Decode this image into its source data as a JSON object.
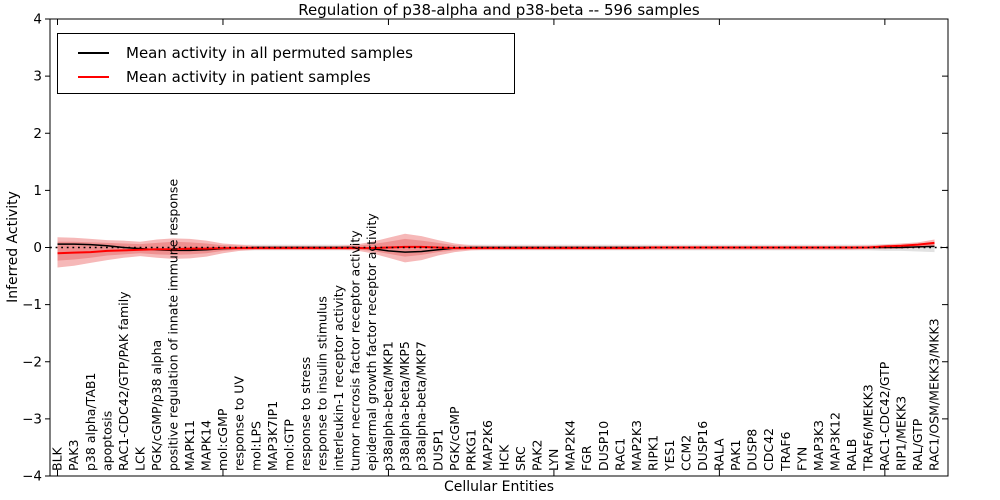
{
  "title": "Regulation of p38-alpha and p38-beta -- 596 samples",
  "legend": {
    "items": [
      {
        "label": "Mean activity in all permuted samples",
        "color": "#000000"
      },
      {
        "label": "Mean activity in patient samples",
        "color": "#ff0000"
      }
    ]
  },
  "chart_data": {
    "type": "line",
    "title": "Regulation of p38-alpha and p38-beta -- 596 samples",
    "xlabel": "Cellular Entities",
    "ylabel": "Inferred Activity",
    "ylim": [
      -4,
      4
    ],
    "yticks": [
      4,
      3,
      2,
      1,
      0,
      -1,
      -2,
      -3,
      -4
    ],
    "grid": false,
    "legend_position": "upper left",
    "zero_line": {
      "style": "dotted",
      "color": "#000000",
      "y": 0
    },
    "categories": [
      "BLK",
      "PAK3",
      "p38 alpha/TAB1",
      "apoptosis",
      "RAC1-CDC42/GTP/PAK family",
      "LCK",
      "PGK/cGMP/p38 alpha",
      "positive regulation of innate immune response",
      "MAPK11",
      "MAPK14",
      "mol:cGMP",
      "response to UV",
      "mol:LPS",
      "MAP3K7IP1",
      "mol:GTP",
      "response to stress",
      "response to insulin stimulus",
      "interleukin-1 receptor activity",
      "tumor necrosis factor receptor activity",
      "epidermal growth factor receptor activity",
      "p38alpha-beta/MKP1",
      "p38alpha-beta/MKP5",
      "p38alpha-beta/MKP7",
      "DUSP1",
      "PGK/cGMP",
      "PRKG1",
      "MAP2K6",
      "HCK",
      "SRC",
      "PAK2",
      "LYN",
      "MAP2K4",
      "FGR",
      "DUSP10",
      "RAC1",
      "MAP2K3",
      "RIPK1",
      "YES1",
      "CCM2",
      "DUSP16",
      "RALA",
      "PAK1",
      "DUSP8",
      "CDC42",
      "TRAF6",
      "FYN",
      "MAP3K3",
      "MAP3K12",
      "RALB",
      "TRAF6/MEKK3",
      "RAC1-CDC42/GTP",
      "RIP1/MEKK3",
      "RAL/GTP",
      "RAC1/OSM/MEKK3/MKK3"
    ],
    "series": [
      {
        "name": "Mean activity in all permuted samples",
        "color": "#000000",
        "values": [
          0.06,
          0.06,
          0.05,
          0.03,
          0,
          -0.02,
          -0.04,
          -0.05,
          -0.05,
          -0.04,
          -0.02,
          -0.01,
          0,
          0,
          0,
          0,
          0,
          0,
          0,
          -0.02,
          -0.06,
          -0.08,
          -0.07,
          -0.04,
          -0.01,
          0,
          0,
          0,
          0,
          0,
          0,
          0,
          0,
          0,
          0,
          0,
          0,
          0,
          0,
          0,
          0,
          0,
          0,
          0,
          0,
          0,
          0,
          0,
          0,
          0,
          0,
          0,
          0.01,
          0.02
        ]
      },
      {
        "name": "Mean activity in patient samples",
        "color": "#ff0000",
        "values": [
          -0.1,
          -0.09,
          -0.08,
          -0.06,
          -0.05,
          -0.04,
          -0.03,
          -0.03,
          -0.02,
          -0.02,
          -0.01,
          -0.01,
          -0.01,
          -0.01,
          -0.01,
          -0.01,
          -0.01,
          -0.01,
          -0.01,
          -0.01,
          0,
          0.01,
          0.01,
          0,
          -0.01,
          -0.01,
          -0.01,
          -0.01,
          -0.01,
          -0.01,
          -0.01,
          -0.01,
          -0.01,
          -0.01,
          -0.01,
          -0.01,
          0,
          0,
          0,
          0,
          0,
          0,
          0,
          0,
          0,
          0,
          0,
          0,
          0,
          0,
          0.02,
          0.03,
          0.05,
          0.08
        ]
      }
    ],
    "bands": [
      {
        "name": "permuted-samples-band",
        "color": "#e2e2e2",
        "lower": [
          -0.06,
          -0.06,
          -0.06,
          -0.06,
          -0.07,
          -0.08,
          -0.09,
          -0.1,
          -0.1,
          -0.09,
          -0.07,
          -0.06,
          -0.05,
          -0.05,
          -0.05,
          -0.05,
          -0.05,
          -0.05,
          -0.05,
          -0.07,
          -0.1,
          -0.12,
          -0.11,
          -0.08,
          -0.06,
          -0.05,
          -0.05,
          -0.05,
          -0.05,
          -0.05,
          -0.05,
          -0.05,
          -0.05,
          -0.05,
          -0.05,
          -0.05,
          -0.05,
          -0.05,
          -0.05,
          -0.05,
          -0.05,
          -0.05,
          -0.05,
          -0.05,
          -0.05,
          -0.05,
          -0.05,
          -0.05,
          -0.05,
          -0.05,
          -0.06,
          -0.06,
          -0.07,
          -0.08
        ],
        "upper": [
          0.14,
          0.14,
          0.12,
          0.1,
          0.08,
          0.06,
          0.05,
          0.05,
          0.05,
          0.05,
          0.05,
          0.05,
          0.05,
          0.05,
          0.05,
          0.05,
          0.05,
          0.05,
          0.05,
          0.05,
          0.05,
          0.05,
          0.05,
          0.05,
          0.05,
          0.05,
          0.05,
          0.05,
          0.05,
          0.05,
          0.05,
          0.05,
          0.05,
          0.05,
          0.05,
          0.05,
          0.05,
          0.05,
          0.05,
          0.05,
          0.05,
          0.05,
          0.05,
          0.05,
          0.05,
          0.05,
          0.05,
          0.05,
          0.05,
          0.05,
          0.06,
          0.07,
          0.09,
          0.11
        ]
      },
      {
        "name": "patient-samples-band-outer",
        "color": "#f6b8b8",
        "lower": [
          -0.35,
          -0.32,
          -0.27,
          -0.22,
          -0.18,
          -0.15,
          -0.18,
          -0.2,
          -0.19,
          -0.16,
          -0.1,
          -0.06,
          -0.04,
          -0.04,
          -0.04,
          -0.04,
          -0.04,
          -0.04,
          -0.05,
          -0.1,
          -0.18,
          -0.26,
          -0.22,
          -0.14,
          -0.08,
          -0.05,
          -0.04,
          -0.04,
          -0.04,
          -0.04,
          -0.04,
          -0.04,
          -0.04,
          -0.04,
          -0.04,
          -0.04,
          -0.04,
          -0.04,
          -0.04,
          -0.04,
          -0.04,
          -0.04,
          -0.04,
          -0.04,
          -0.04,
          -0.04,
          -0.04,
          -0.04,
          -0.04,
          -0.03,
          -0.03,
          -0.02,
          -0.01,
          0.02
        ],
        "upper": [
          0.18,
          0.17,
          0.15,
          0.13,
          0.12,
          0.1,
          0.14,
          0.16,
          0.15,
          0.12,
          0.07,
          0.05,
          0.03,
          0.03,
          0.03,
          0.03,
          0.03,
          0.03,
          0.05,
          0.1,
          0.17,
          0.24,
          0.2,
          0.13,
          0.07,
          0.04,
          0.03,
          0.03,
          0.03,
          0.03,
          0.03,
          0.03,
          0.03,
          0.03,
          0.03,
          0.03,
          0.03,
          0.03,
          0.03,
          0.03,
          0.03,
          0.03,
          0.03,
          0.03,
          0.03,
          0.03,
          0.03,
          0.03,
          0.03,
          0.04,
          0.05,
          0.07,
          0.09,
          0.14
        ]
      },
      {
        "name": "patient-samples-band-inner",
        "color": "#ee9090",
        "lower": [
          -0.23,
          -0.21,
          -0.18,
          -0.14,
          -0.12,
          -0.1,
          -0.12,
          -0.13,
          -0.12,
          -0.1,
          -0.06,
          -0.04,
          -0.03,
          -0.03,
          -0.03,
          -0.03,
          -0.03,
          -0.03,
          -0.03,
          -0.06,
          -0.11,
          -0.16,
          -0.13,
          -0.08,
          -0.05,
          -0.03,
          -0.03,
          -0.03,
          -0.03,
          -0.03,
          -0.03,
          -0.03,
          -0.03,
          -0.03,
          -0.03,
          -0.03,
          -0.03,
          -0.03,
          -0.03,
          -0.03,
          -0.03,
          -0.03,
          -0.03,
          -0.03,
          -0.03,
          -0.03,
          -0.03,
          -0.03,
          -0.03,
          -0.02,
          -0.01,
          0,
          0.01,
          0.04
        ],
        "upper": [
          0.1,
          0.1,
          0.09,
          0.08,
          0.07,
          0.06,
          0.08,
          0.1,
          0.09,
          0.07,
          0.04,
          0.03,
          0.02,
          0.02,
          0.02,
          0.02,
          0.02,
          0.02,
          0.03,
          0.06,
          0.1,
          0.15,
          0.12,
          0.08,
          0.04,
          0.02,
          0.02,
          0.02,
          0.02,
          0.02,
          0.02,
          0.02,
          0.02,
          0.02,
          0.02,
          0.02,
          0.02,
          0.02,
          0.02,
          0.02,
          0.02,
          0.02,
          0.02,
          0.02,
          0.02,
          0.02,
          0.02,
          0.02,
          0.02,
          0.02,
          0.03,
          0.04,
          0.06,
          0.1
        ]
      }
    ]
  }
}
